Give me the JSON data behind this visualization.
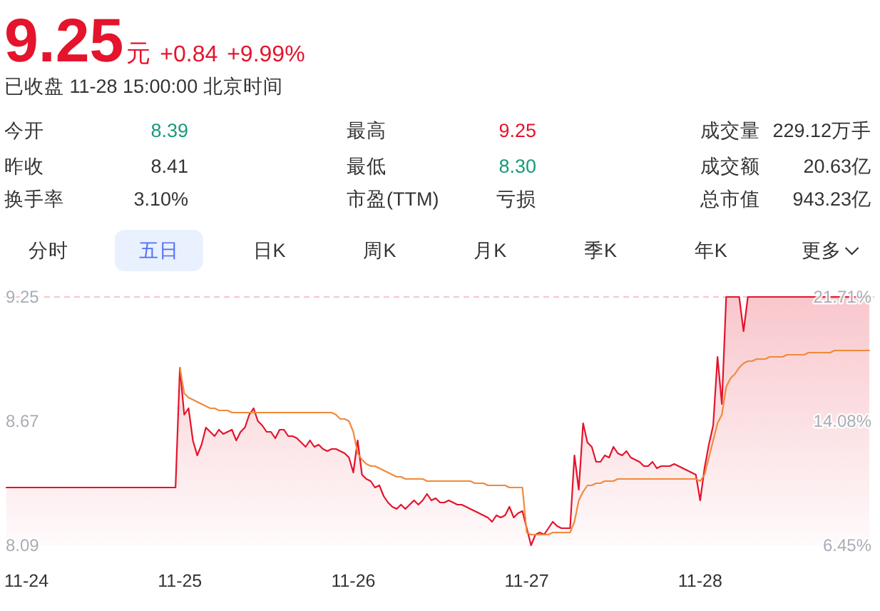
{
  "chart_data": [
    {
      "type": "other",
      "title": "9.25元 +0.84 +9.99%",
      "subtitle": "已收盘 11-28 15:00:00 北京时间",
      "annotations": [
        "今开",
        "8.39",
        "最高",
        "9.25",
        "成交量",
        "229.12万手",
        "昨收",
        "8.41",
        "最低",
        "8.30",
        "成交额",
        "20.63亿",
        "换手率",
        "3.10%",
        "市盈(TTM)",
        "亏损",
        "总市值",
        "943.23亿",
        "分时",
        "五日",
        "日K",
        "周K",
        "月K",
        "季K",
        "年K",
        "更多"
      ]
    },
    {
      "type": "line",
      "categories": [
        "11-24",
        null,
        null,
        null,
        null,
        null,
        null,
        null,
        null,
        null,
        null,
        null,
        null,
        null,
        null,
        null,
        null,
        null,
        null,
        null,
        null,
        null,
        null,
        null,
        null,
        null,
        null,
        null,
        null,
        null,
        null,
        null,
        null,
        null,
        null,
        null,
        null,
        null,
        null,
        null,
        "11-25",
        null,
        null,
        null,
        null,
        null,
        null,
        null,
        null,
        null,
        null,
        null,
        null,
        null,
        null,
        null,
        null,
        null,
        null,
        null,
        null,
        null,
        null,
        null,
        null,
        null,
        null,
        null,
        null,
        null,
        null,
        null,
        null,
        null,
        null,
        null,
        null,
        null,
        null,
        null,
        "11-26",
        null,
        null,
        null,
        null,
        null,
        null,
        null,
        null,
        null,
        null,
        null,
        null,
        null,
        null,
        null,
        null,
        null,
        null,
        null,
        null,
        null,
        null,
        null,
        null,
        null,
        null,
        null,
        null,
        null,
        null,
        null,
        null,
        null,
        null,
        null,
        null,
        null,
        null,
        null,
        "11-27",
        null,
        null,
        null,
        null,
        null,
        null,
        null,
        null,
        null,
        null,
        null,
        null,
        null,
        null,
        null,
        null,
        null,
        null,
        null,
        null,
        null,
        null,
        null,
        null,
        null,
        null,
        null,
        null,
        null,
        null,
        null,
        null,
        null,
        null,
        null,
        null,
        null,
        null,
        null,
        "11-28",
        null,
        null,
        null,
        null,
        null,
        null,
        null,
        null,
        null,
        null,
        null,
        null,
        null,
        null,
        null,
        null,
        null,
        null,
        null,
        null,
        null,
        null,
        null,
        null,
        null,
        null,
        null,
        null,
        null,
        null,
        null,
        null,
        null,
        null,
        null,
        null,
        null,
        null,
        null
      ],
      "ylim": [
        8.09,
        9.25
      ],
      "yticks": [
        8.09,
        8.67,
        9.25
      ],
      "y2lim": [
        6.45,
        21.71
      ],
      "y2ticks": [
        {
          "value": 6.45,
          "label": "6.45%"
        },
        {
          "value": 14.08,
          "label": "14.08%"
        },
        {
          "value": 21.71,
          "label": "21.71%"
        }
      ],
      "ref_lines": [
        {
          "axis": "y",
          "value": 9.25,
          "color": "#f7c5c9",
          "line_style": "dashed"
        }
      ],
      "series": [
        {
          "type": "area",
          "color": "#e3142c",
          "values": [
            8.36,
            8.36,
            8.36,
            8.36,
            8.36,
            8.36,
            8.36,
            8.36,
            8.36,
            8.36,
            8.36,
            8.36,
            8.36,
            8.36,
            8.36,
            8.36,
            8.36,
            8.36,
            8.36,
            8.36,
            8.36,
            8.36,
            8.36,
            8.36,
            8.36,
            8.36,
            8.36,
            8.36,
            8.36,
            8.36,
            8.36,
            8.36,
            8.36,
            8.36,
            8.36,
            8.36,
            8.36,
            8.36,
            8.36,
            8.36,
            8.92,
            8.7,
            8.73,
            8.58,
            8.51,
            8.56,
            8.64,
            8.62,
            8.6,
            8.63,
            8.61,
            8.62,
            8.63,
            8.58,
            8.62,
            8.64,
            8.7,
            8.73,
            8.67,
            8.65,
            8.62,
            8.62,
            8.59,
            8.63,
            8.63,
            8.6,
            8.6,
            8.59,
            8.57,
            8.55,
            8.58,
            8.55,
            8.56,
            8.54,
            8.53,
            8.54,
            8.54,
            8.53,
            8.52,
            8.5,
            8.43,
            8.58,
            8.42,
            8.4,
            8.39,
            8.36,
            8.37,
            8.32,
            8.29,
            8.27,
            8.26,
            8.28,
            8.26,
            8.28,
            8.3,
            8.28,
            8.3,
            8.33,
            8.3,
            8.31,
            8.29,
            8.29,
            8.3,
            8.29,
            8.28,
            8.28,
            8.27,
            8.26,
            8.25,
            8.24,
            8.23,
            8.22,
            8.2,
            8.23,
            8.22,
            8.23,
            8.27,
            8.22,
            8.24,
            8.25,
            8.17,
            8.09,
            8.14,
            8.15,
            8.14,
            8.17,
            8.2,
            8.18,
            8.17,
            8.17,
            8.17,
            8.51,
            8.35,
            8.66,
            8.57,
            8.55,
            8.48,
            8.48,
            8.51,
            8.5,
            8.55,
            8.52,
            8.51,
            8.53,
            8.5,
            8.49,
            8.48,
            8.46,
            8.46,
            8.48,
            8.45,
            8.46,
            8.46,
            8.46,
            8.47,
            8.46,
            8.45,
            8.44,
            8.43,
            8.42,
            8.3,
            8.45,
            8.56,
            8.65,
            8.97,
            8.75,
            9.25,
            9.25,
            9.25,
            9.25,
            9.09,
            9.25,
            9.25,
            9.25,
            9.25,
            9.25,
            9.25,
            9.25,
            9.25,
            9.25,
            9.25,
            9.25,
            9.25,
            9.25,
            9.25,
            9.25,
            9.25,
            9.25,
            9.25,
            9.25,
            9.25,
            9.25,
            9.25,
            9.25,
            9.25,
            9.25,
            9.25,
            9.25,
            9.25,
            9.25
          ]
        },
        {
          "type": "line",
          "color": "#f08a3c",
          "values": [
            null,
            null,
            null,
            null,
            null,
            null,
            null,
            null,
            null,
            null,
            null,
            null,
            null,
            null,
            null,
            null,
            null,
            null,
            null,
            null,
            null,
            null,
            null,
            null,
            null,
            null,
            null,
            null,
            null,
            null,
            null,
            null,
            null,
            null,
            null,
            null,
            null,
            null,
            null,
            null,
            8.92,
            8.8,
            8.78,
            8.77,
            8.76,
            8.75,
            8.74,
            8.73,
            8.73,
            8.72,
            8.72,
            8.72,
            8.71,
            8.71,
            8.71,
            8.71,
            8.71,
            8.71,
            8.71,
            8.71,
            8.71,
            8.71,
            8.71,
            8.71,
            8.71,
            8.71,
            8.71,
            8.71,
            8.71,
            8.71,
            8.71,
            8.71,
            8.71,
            8.71,
            8.71,
            8.71,
            8.7,
            8.68,
            8.68,
            8.67,
            8.62,
            8.52,
            8.49,
            8.47,
            8.46,
            8.46,
            8.45,
            8.44,
            8.43,
            8.42,
            8.41,
            8.41,
            8.4,
            8.4,
            8.4,
            8.4,
            8.4,
            8.39,
            8.39,
            8.39,
            8.39,
            8.39,
            8.39,
            8.39,
            8.39,
            8.39,
            8.39,
            8.39,
            8.38,
            8.38,
            8.38,
            8.37,
            8.37,
            8.37,
            8.37,
            8.37,
            8.36,
            8.36,
            8.36,
            8.36,
            8.15,
            8.14,
            8.14,
            8.14,
            8.14,
            8.14,
            8.15,
            8.15,
            8.15,
            8.15,
            8.15,
            8.2,
            8.3,
            8.34,
            8.37,
            8.37,
            8.38,
            8.38,
            8.39,
            8.39,
            8.39,
            8.4,
            8.4,
            8.4,
            8.4,
            8.4,
            8.4,
            8.4,
            8.4,
            8.4,
            8.4,
            8.4,
            8.4,
            8.4,
            8.4,
            8.4,
            8.4,
            8.4,
            8.4,
            8.4,
            8.39,
            8.42,
            8.5,
            8.58,
            8.66,
            8.7,
            8.83,
            8.87,
            8.89,
            8.92,
            8.94,
            8.95,
            8.95,
            8.96,
            8.96,
            8.96,
            8.97,
            8.97,
            8.97,
            8.97,
            8.98,
            8.98,
            8.98,
            8.98,
            8.98,
            8.99,
            8.99,
            8.99,
            8.99,
            8.99,
            8.99,
            9,
            9,
            9,
            9,
            9,
            9,
            9,
            9,
            9
          ]
        }
      ]
    }
  ]
}
